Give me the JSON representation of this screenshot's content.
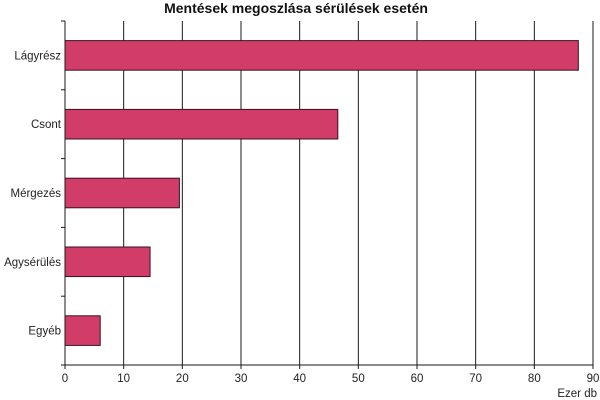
{
  "chart_data": {
    "type": "bar",
    "orientation": "horizontal",
    "title": "Mentések megoszlása sérülések esetén",
    "categories": [
      "Lágyrész",
      "Csont",
      "Mérgezés",
      "Agysérülés",
      "Egyéb"
    ],
    "values": [
      87.5,
      46.5,
      19.5,
      14.5,
      6
    ],
    "xlabel": "Ezer db",
    "ylabel": "",
    "xlim": [
      0,
      90
    ],
    "xticks": [
      0,
      10,
      20,
      30,
      40,
      50,
      60,
      70,
      80,
      90
    ],
    "grid": "vertical",
    "legend": "none",
    "bar_color": "#d23c69",
    "bar_edge_color": "#3a1020"
  }
}
